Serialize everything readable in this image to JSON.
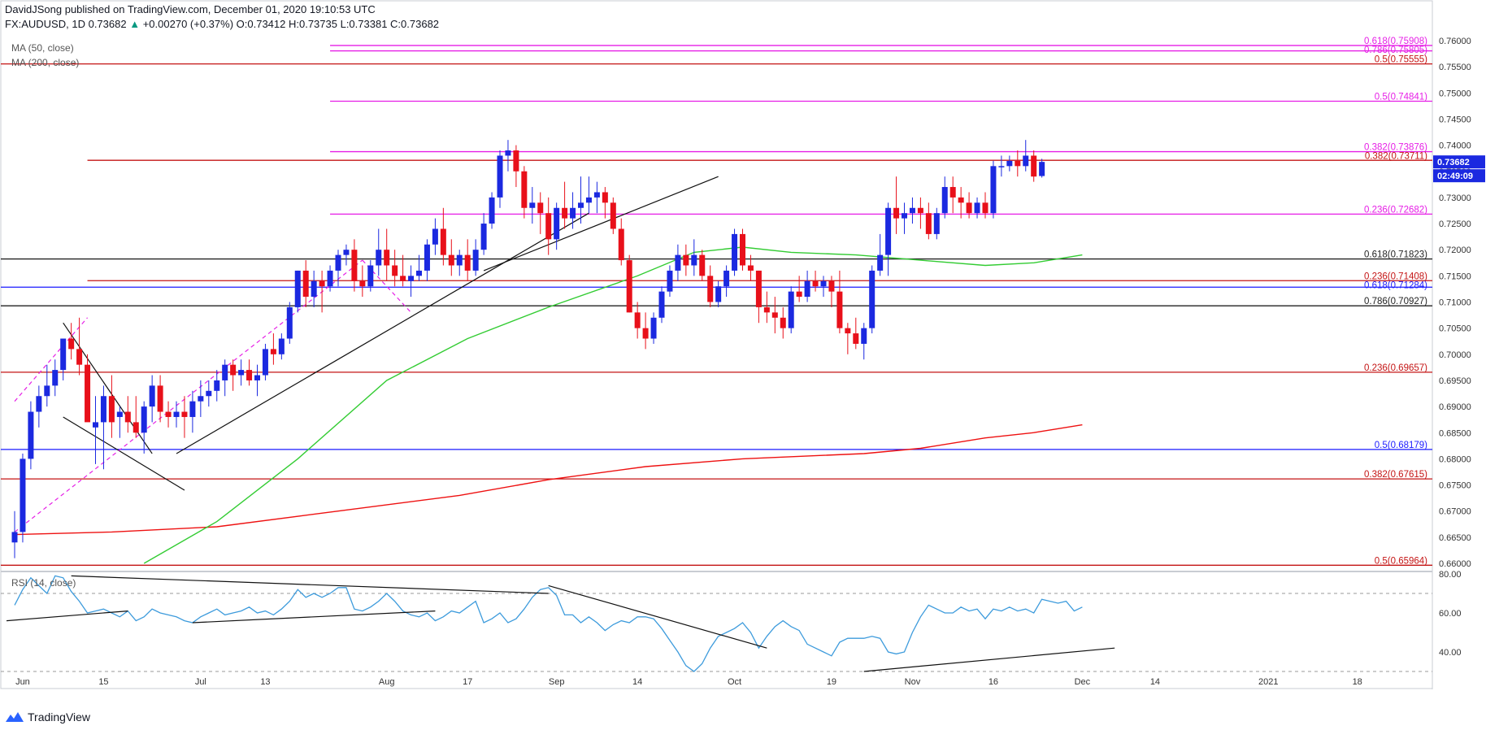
{
  "header": {
    "line1": "DavidJSong published on TradingView.com, December 01, 2020 19:10:53 UTC",
    "symbol": "FX:AUDUSD, 1D",
    "last": "0.73682",
    "change": "+0.00270 (+0.37%)",
    "ohlc": "O:0.73412 H:0.73735 L:0.73381 C:0.73682"
  },
  "legend": {
    "ma50": "MA (50, close)",
    "ma200": "MA (200, close)",
    "rsi": "RSI (14, close)"
  },
  "price_badges": {
    "last": "0.73682",
    "countdown": "02:49:09"
  },
  "branding": "TradingView",
  "colors": {
    "up": "#1b29e0",
    "down": "#e8101a",
    "ma50": "#33cc33",
    "ma200": "#ee1111",
    "rsi": "#3d9bdc",
    "fib_magenta": "#e61ee6",
    "fib_red": "#c41414",
    "fib_blue": "#1a1aff",
    "fib_black": "#222222",
    "axis_text": "#333333"
  },
  "chart_data": {
    "type": "candlestick",
    "ylim": [
      0.66,
      0.76
    ],
    "y_ticks": [
      "0.76000",
      "0.75500",
      "0.75000",
      "0.74500",
      "0.74000",
      "0.73500",
      "0.73000",
      "0.72500",
      "0.72000",
      "0.71500",
      "0.71000",
      "0.70500",
      "0.70000",
      "0.69500",
      "0.69000",
      "0.68500",
      "0.68000",
      "0.67500",
      "0.67000",
      "0.66500",
      "0.66000"
    ],
    "y_tick_values": [
      0.76,
      0.755,
      0.75,
      0.745,
      0.74,
      0.735,
      0.73,
      0.725,
      0.72,
      0.715,
      0.71,
      0.705,
      0.7,
      0.695,
      0.69,
      0.685,
      0.68,
      0.675,
      0.67,
      0.665,
      0.66
    ],
    "x_ticks": [
      {
        "label": "Jun",
        "bar": 1
      },
      {
        "label": "15",
        "bar": 11
      },
      {
        "label": "Jul",
        "bar": 23
      },
      {
        "label": "13",
        "bar": 31
      },
      {
        "label": "Aug",
        "bar": 46
      },
      {
        "label": "17",
        "bar": 56
      },
      {
        "label": "Sep",
        "bar": 67
      },
      {
        "label": "14",
        "bar": 77
      },
      {
        "label": "Oct",
        "bar": 89
      },
      {
        "label": "19",
        "bar": 101
      },
      {
        "label": "Nov",
        "bar": 111
      },
      {
        "label": "16",
        "bar": 121
      },
      {
        "label": "Dec",
        "bar": 132
      },
      {
        "label": "14",
        "bar": 141
      },
      {
        "label": "2021",
        "bar": 155
      },
      {
        "label": "18",
        "bar": 166
      }
    ],
    "candles": [
      [
        0.664,
        0.67,
        0.661,
        0.666
      ],
      [
        0.666,
        0.681,
        0.664,
        0.68
      ],
      [
        0.68,
        0.691,
        0.678,
        0.689
      ],
      [
        0.689,
        0.694,
        0.686,
        0.692
      ],
      [
        0.692,
        0.698,
        0.69,
        0.694
      ],
      [
        0.694,
        0.699,
        0.692,
        0.697
      ],
      [
        0.697,
        0.703,
        0.695,
        0.703
      ],
      [
        0.703,
        0.706,
        0.699,
        0.701
      ],
      [
        0.701,
        0.707,
        0.696,
        0.698
      ],
      [
        0.698,
        0.7,
        0.688,
        0.687
      ],
      [
        0.686,
        0.692,
        0.679,
        0.687
      ],
      [
        0.687,
        0.694,
        0.678,
        0.692
      ],
      [
        0.692,
        0.696,
        0.684,
        0.687
      ],
      [
        0.688,
        0.69,
        0.684,
        0.689
      ],
      [
        0.689,
        0.692,
        0.685,
        0.687
      ],
      [
        0.687,
        0.692,
        0.684,
        0.685
      ],
      [
        0.685,
        0.691,
        0.681,
        0.69
      ],
      [
        0.69,
        0.696,
        0.687,
        0.694
      ],
      [
        0.694,
        0.696,
        0.687,
        0.689
      ],
      [
        0.689,
        0.691,
        0.686,
        0.688
      ],
      [
        0.688,
        0.691,
        0.686,
        0.689
      ],
      [
        0.689,
        0.692,
        0.684,
        0.688
      ],
      [
        0.688,
        0.693,
        0.685,
        0.691
      ],
      [
        0.691,
        0.695,
        0.688,
        0.692
      ],
      [
        0.692,
        0.695,
        0.69,
        0.693
      ],
      [
        0.693,
        0.697,
        0.691,
        0.695
      ],
      [
        0.695,
        0.699,
        0.692,
        0.698
      ],
      [
        0.698,
        0.699,
        0.693,
        0.696
      ],
      [
        0.696,
        0.699,
        0.694,
        0.697
      ],
      [
        0.697,
        0.699,
        0.694,
        0.695
      ],
      [
        0.695,
        0.698,
        0.692,
        0.696
      ],
      [
        0.696,
        0.702,
        0.695,
        0.701
      ],
      [
        0.701,
        0.704,
        0.698,
        0.7
      ],
      [
        0.7,
        0.704,
        0.699,
        0.703
      ],
      [
        0.703,
        0.71,
        0.702,
        0.709
      ],
      [
        0.709,
        0.716,
        0.708,
        0.716
      ],
      [
        0.716,
        0.718,
        0.709,
        0.711
      ],
      [
        0.711,
        0.716,
        0.709,
        0.714
      ],
      [
        0.714,
        0.716,
        0.708,
        0.713
      ],
      [
        0.713,
        0.717,
        0.712,
        0.716
      ],
      [
        0.716,
        0.72,
        0.713,
        0.719
      ],
      [
        0.719,
        0.721,
        0.717,
        0.72
      ],
      [
        0.72,
        0.722,
        0.712,
        0.714
      ],
      [
        0.714,
        0.717,
        0.711,
        0.713
      ],
      [
        0.713,
        0.718,
        0.712,
        0.717
      ],
      [
        0.717,
        0.724,
        0.715,
        0.72
      ],
      [
        0.72,
        0.724,
        0.714,
        0.717
      ],
      [
        0.717,
        0.72,
        0.713,
        0.715
      ],
      [
        0.715,
        0.719,
        0.713,
        0.714
      ],
      [
        0.714,
        0.717,
        0.711,
        0.715
      ],
      [
        0.715,
        0.719,
        0.714,
        0.716
      ],
      [
        0.716,
        0.722,
        0.714,
        0.721
      ],
      [
        0.721,
        0.726,
        0.719,
        0.724
      ],
      [
        0.724,
        0.728,
        0.717,
        0.719
      ],
      [
        0.719,
        0.722,
        0.715,
        0.717
      ],
      [
        0.717,
        0.72,
        0.715,
        0.719
      ],
      [
        0.719,
        0.722,
        0.714,
        0.716
      ],
      [
        0.716,
        0.722,
        0.715,
        0.72
      ],
      [
        0.72,
        0.727,
        0.719,
        0.725
      ],
      [
        0.725,
        0.731,
        0.724,
        0.73
      ],
      [
        0.73,
        0.739,
        0.728,
        0.738
      ],
      [
        0.738,
        0.741,
        0.735,
        0.739
      ],
      [
        0.739,
        0.74,
        0.732,
        0.735
      ],
      [
        0.735,
        0.736,
        0.726,
        0.728
      ],
      [
        0.728,
        0.732,
        0.725,
        0.729
      ],
      [
        0.729,
        0.731,
        0.723,
        0.727
      ],
      [
        0.727,
        0.73,
        0.719,
        0.722
      ],
      [
        0.722,
        0.729,
        0.72,
        0.728
      ],
      [
        0.728,
        0.733,
        0.724,
        0.726
      ],
      [
        0.726,
        0.731,
        0.724,
        0.728
      ],
      [
        0.728,
        0.734,
        0.725,
        0.729
      ],
      [
        0.729,
        0.734,
        0.727,
        0.73
      ],
      [
        0.73,
        0.733,
        0.727,
        0.731
      ],
      [
        0.731,
        0.732,
        0.726,
        0.729
      ],
      [
        0.729,
        0.73,
        0.723,
        0.724
      ],
      [
        0.724,
        0.726,
        0.717,
        0.718
      ],
      [
        0.718,
        0.719,
        0.708,
        0.708
      ],
      [
        0.708,
        0.71,
        0.703,
        0.705
      ],
      [
        0.705,
        0.708,
        0.701,
        0.703
      ],
      [
        0.703,
        0.708,
        0.702,
        0.707
      ],
      [
        0.707,
        0.713,
        0.706,
        0.712
      ],
      [
        0.712,
        0.717,
        0.711,
        0.716
      ],
      [
        0.716,
        0.721,
        0.714,
        0.719
      ],
      [
        0.719,
        0.721,
        0.715,
        0.717
      ],
      [
        0.717,
        0.722,
        0.715,
        0.719
      ],
      [
        0.719,
        0.72,
        0.714,
        0.715
      ],
      [
        0.715,
        0.717,
        0.709,
        0.71
      ],
      [
        0.71,
        0.714,
        0.709,
        0.713
      ],
      [
        0.713,
        0.717,
        0.711,
        0.716
      ],
      [
        0.716,
        0.724,
        0.715,
        0.723
      ],
      [
        0.723,
        0.724,
        0.716,
        0.717
      ],
      [
        0.717,
        0.719,
        0.714,
        0.716
      ],
      [
        0.716,
        0.716,
        0.706,
        0.709
      ],
      [
        0.709,
        0.712,
        0.706,
        0.708
      ],
      [
        0.708,
        0.711,
        0.704,
        0.707
      ],
      [
        0.707,
        0.709,
        0.703,
        0.705
      ],
      [
        0.705,
        0.713,
        0.704,
        0.712
      ],
      [
        0.712,
        0.715,
        0.71,
        0.711
      ],
      [
        0.711,
        0.716,
        0.71,
        0.714
      ],
      [
        0.714,
        0.716,
        0.712,
        0.713
      ],
      [
        0.713,
        0.715,
        0.711,
        0.714
      ],
      [
        0.714,
        0.715,
        0.709,
        0.712
      ],
      [
        0.712,
        0.716,
        0.704,
        0.705
      ],
      [
        0.705,
        0.706,
        0.7,
        0.704
      ],
      [
        0.704,
        0.707,
        0.701,
        0.702
      ],
      [
        0.702,
        0.706,
        0.699,
        0.705
      ],
      [
        0.705,
        0.717,
        0.704,
        0.716
      ],
      [
        0.716,
        0.723,
        0.715,
        0.719
      ],
      [
        0.719,
        0.729,
        0.715,
        0.728
      ],
      [
        0.728,
        0.734,
        0.723,
        0.726
      ],
      [
        0.726,
        0.729,
        0.723,
        0.727
      ],
      [
        0.727,
        0.73,
        0.725,
        0.728
      ],
      [
        0.728,
        0.73,
        0.724,
        0.727
      ],
      [
        0.727,
        0.729,
        0.722,
        0.723
      ],
      [
        0.723,
        0.728,
        0.722,
        0.727
      ],
      [
        0.727,
        0.734,
        0.726,
        0.732
      ],
      [
        0.732,
        0.734,
        0.727,
        0.73
      ],
      [
        0.73,
        0.732,
        0.726,
        0.729
      ],
      [
        0.729,
        0.731,
        0.726,
        0.727
      ],
      [
        0.727,
        0.73,
        0.726,
        0.729
      ],
      [
        0.729,
        0.731,
        0.726,
        0.727
      ],
      [
        0.727,
        0.737,
        0.726,
        0.736
      ],
      [
        0.736,
        0.738,
        0.734,
        0.736
      ],
      [
        0.736,
        0.738,
        0.735,
        0.737
      ],
      [
        0.737,
        0.739,
        0.734,
        0.736
      ],
      [
        0.736,
        0.741,
        0.735,
        0.738
      ],
      [
        0.738,
        0.739,
        0.733,
        0.734
      ],
      [
        0.7341,
        0.7374,
        0.7338,
        0.7368
      ]
    ],
    "ma50": [
      [
        16,
        0.66
      ],
      [
        25,
        0.668
      ],
      [
        35,
        0.68
      ],
      [
        46,
        0.695
      ],
      [
        56,
        0.703
      ],
      [
        66,
        0.709
      ],
      [
        77,
        0.715
      ],
      [
        84,
        0.7195
      ],
      [
        90,
        0.7205
      ],
      [
        96,
        0.7195
      ],
      [
        104,
        0.719
      ],
      [
        112,
        0.718
      ],
      [
        120,
        0.717
      ],
      [
        126,
        0.7175
      ],
      [
        132,
        0.719
      ]
    ],
    "ma200": [
      [
        0,
        0.6655
      ],
      [
        12,
        0.666
      ],
      [
        25,
        0.667
      ],
      [
        40,
        0.67
      ],
      [
        55,
        0.673
      ],
      [
        66,
        0.676
      ],
      [
        78,
        0.6785
      ],
      [
        90,
        0.68
      ],
      [
        105,
        0.681
      ],
      [
        112,
        0.682
      ],
      [
        120,
        0.684
      ],
      [
        126,
        0.685
      ],
      [
        132,
        0.6865
      ]
    ],
    "fib_levels": [
      {
        "label": "0.618(0.75908)",
        "value": 0.75908,
        "color": "#e61ee6",
        "start_bar": 39
      },
      {
        "label": "0.786(0.75805)",
        "value": 0.75805,
        "color": "#e61ee6",
        "start_bar": 39
      },
      {
        "label": "0.5(0.75555)",
        "value": 0.75555,
        "color": "#c41414",
        "start_bar": -1
      },
      {
        "label": "0.5(0.74841)",
        "value": 0.74841,
        "color": "#e61ee6",
        "start_bar": 39
      },
      {
        "label": "0.382(0.73876)",
        "value": 0.73876,
        "color": "#e61ee6",
        "start_bar": 39
      },
      {
        "label": "0.382(0.73711)",
        "value": 0.73711,
        "color": "#c41414",
        "start_bar": 9
      },
      {
        "label": "0.236(0.72682)",
        "value": 0.72682,
        "color": "#e61ee6",
        "start_bar": 39
      },
      {
        "label": "0.618(0.71823)",
        "value": 0.71823,
        "color": "#222222",
        "start_bar": -1
      },
      {
        "label": "0.236(0.71408)",
        "value": 0.71408,
        "color": "#c41414",
        "start_bar": 9
      },
      {
        "label": "0.618(0.71284)",
        "value": 0.71284,
        "color": "#1a1aff",
        "start_bar": -1
      },
      {
        "label": "0.786(0.70927)",
        "value": 0.70927,
        "color": "#222222",
        "start_bar": -1
      },
      {
        "label": "0.236(0.69657)",
        "value": 0.69657,
        "color": "#c41414",
        "start_bar": -1
      },
      {
        "label": "0.5(0.68179)",
        "value": 0.68179,
        "color": "#1a1aff",
        "start_bar": -1
      },
      {
        "label": "0.382(0.67615)",
        "value": 0.67615,
        "color": "#c41414",
        "start_bar": -1
      },
      {
        "label": "0.5(0.65964)",
        "value": 0.65964,
        "color": "#c41414",
        "start_bar": -1
      }
    ],
    "rsi": {
      "ylim": [
        30,
        80
      ],
      "y_ticks": [
        "80.00",
        "60.00",
        "40.00"
      ],
      "y_tick_values": [
        80,
        60,
        40
      ],
      "dashed_levels": [
        70,
        30
      ],
      "values": [
        64,
        72,
        78,
        74,
        70,
        79,
        78,
        71,
        66,
        60,
        61,
        62,
        60,
        58,
        61,
        56,
        58,
        62,
        60,
        59,
        58,
        56,
        55,
        58,
        60,
        62,
        59,
        60,
        61,
        63,
        60,
        61,
        59,
        62,
        66,
        72,
        68,
        70,
        68,
        70,
        73,
        73,
        62,
        61,
        63,
        66,
        70,
        66,
        61,
        59,
        58,
        60,
        56,
        58,
        61,
        60,
        63,
        66,
        55,
        57,
        60,
        55,
        57,
        62,
        68,
        72,
        73,
        69,
        59,
        59,
        55,
        58,
        55,
        51,
        54,
        56,
        55,
        58,
        58,
        57,
        52,
        46,
        40,
        33,
        30,
        34,
        42,
        48,
        50,
        52,
        55,
        50,
        42,
        48,
        53,
        56,
        53,
        51,
        44,
        42,
        40,
        38,
        45,
        47,
        47,
        47,
        48,
        47,
        40,
        39,
        40,
        50,
        58,
        64,
        62,
        60,
        60,
        63,
        61,
        62,
        57,
        62,
        61,
        63,
        61,
        62,
        60,
        67,
        66,
        65,
        66,
        61,
        63
      ]
    },
    "trendlines": [
      {
        "kind": "solid",
        "from": [
          20,
          0.681
        ],
        "to": [
          71,
          0.727
        ]
      },
      {
        "kind": "solid",
        "from": [
          58,
          0.716
        ],
        "to": [
          87,
          0.734
        ]
      },
      {
        "kind": "solid",
        "from": [
          6,
          0.706
        ],
        "to": [
          17,
          0.681
        ]
      },
      {
        "kind": "solid",
        "from": [
          6,
          0.688
        ],
        "to": [
          21,
          0.674
        ]
      },
      {
        "kind": "dashed",
        "from": [
          0,
          0.666
        ],
        "to": [
          43,
          0.718
        ]
      },
      {
        "kind": "dashed",
        "from": [
          0,
          0.691
        ],
        "to": [
          9,
          0.707
        ]
      },
      {
        "kind": "dashed",
        "from": [
          43,
          0.718
        ],
        "to": [
          49,
          0.708
        ]
      }
    ],
    "rsi_trendlines": [
      {
        "from": [
          -1,
          56
        ],
        "to": [
          14,
          61
        ]
      },
      {
        "from": [
          7,
          79
        ],
        "to": [
          66,
          70
        ]
      },
      {
        "from": [
          22,
          55
        ],
        "to": [
          52,
          61
        ]
      },
      {
        "from": [
          66,
          74
        ],
        "to": [
          93,
          42
        ]
      },
      {
        "from": [
          105,
          30
        ],
        "to": [
          136,
          42
        ]
      }
    ]
  }
}
